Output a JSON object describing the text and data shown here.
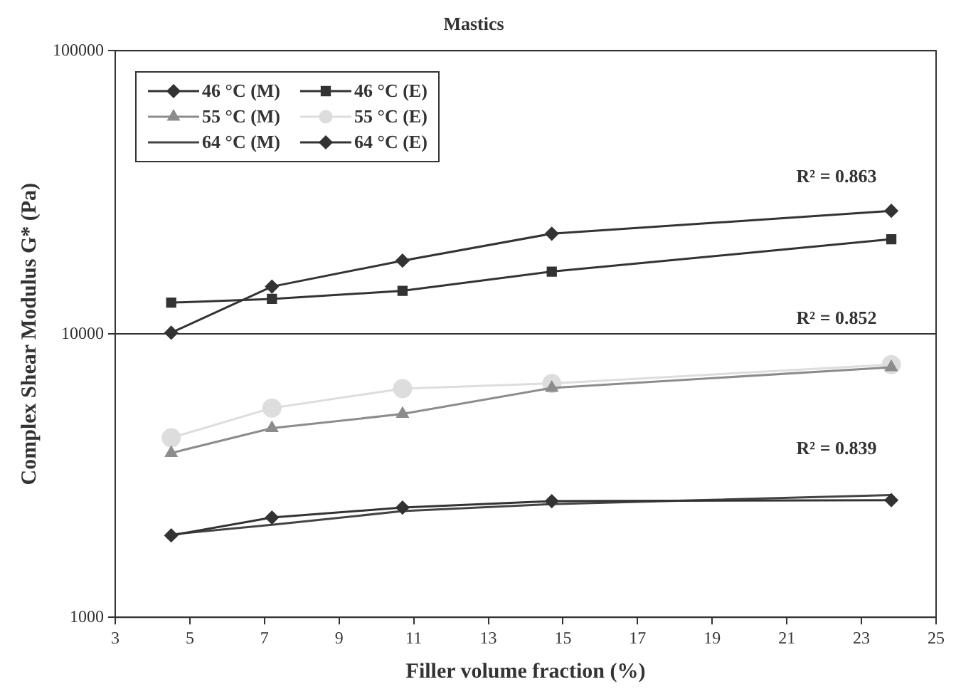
{
  "chart_data": {
    "type": "line",
    "title": "Mastics",
    "xlabel": "Filler volume fraction (%)",
    "ylabel": "Complex Shear Modulus G* (Pa)",
    "x": [
      4.5,
      7.2,
      10.7,
      14.7,
      23.8
    ],
    "series": [
      {
        "name": "46 °C (M)",
        "color": "#333333",
        "marker": "diamond",
        "values": [
          1945,
          2250,
          2440,
          2570,
          2590
        ]
      },
      {
        "name": "46 °C (E)",
        "color": "#333333",
        "marker": "square",
        "values": [
          12900,
          13300,
          14200,
          16600,
          21600
        ]
      },
      {
        "name": "55 °C (M)",
        "color": "#8c8c8c",
        "marker": "triangle",
        "values": [
          3800,
          4650,
          5220,
          6450,
          7630
        ]
      },
      {
        "name": "55 °C (E)",
        "color": "#dddddd",
        "marker": "circle",
        "values": [
          4300,
          5480,
          6410,
          6690,
          7800
        ]
      },
      {
        "name": "64 °C (M)",
        "color": "#444444",
        "marker": "none",
        "values": [
          1960,
          2120,
          2370,
          2510,
          2700
        ]
      },
      {
        "name": "64 °C (E)",
        "color": "#333333",
        "marker": "diamond",
        "values": [
          10100,
          14700,
          18150,
          22600,
          27200
        ]
      }
    ],
    "log": "y",
    "xlim": [
      3,
      25
    ],
    "xticks": [
      3,
      5,
      7,
      9,
      11,
      13,
      15,
      17,
      19,
      21,
      23,
      25
    ],
    "ylim": [
      1000,
      100000
    ],
    "yticks": [
      1000,
      10000,
      100000
    ],
    "grid": "y",
    "legend": "top left",
    "annotations": [
      "R² = 0.863",
      "R² = 0.852",
      "R² = 0.839"
    ]
  }
}
